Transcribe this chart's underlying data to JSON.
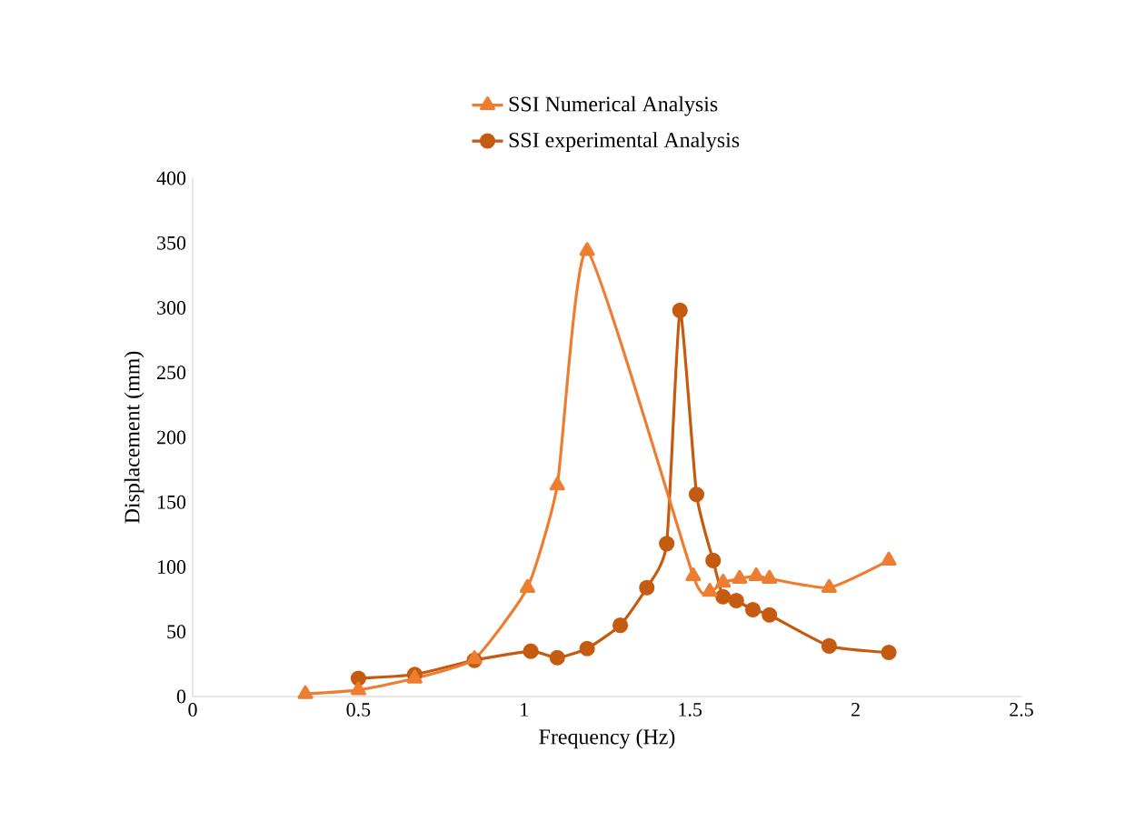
{
  "chart_data": {
    "type": "line",
    "xlabel": "Frequency (Hz)",
    "ylabel": "Displacement (mm)",
    "xlim": [
      0,
      2.5
    ],
    "ylim": [
      0,
      400
    ],
    "xticks": [
      0,
      0.5,
      1,
      1.5,
      2,
      2.5
    ],
    "yticks": [
      0,
      50,
      100,
      150,
      200,
      250,
      300,
      350,
      400
    ],
    "grid": false,
    "legend": "top",
    "series": [
      {
        "name": "SSI Numerical Analysis",
        "color": "#ed7d31",
        "marker": "triangle",
        "x": [
          0.34,
          0.5,
          0.67,
          0.85,
          1.01,
          1.1,
          1.19,
          1.51,
          1.56,
          1.6,
          1.65,
          1.7,
          1.74,
          1.92,
          2.1
        ],
        "values": [
          2,
          5,
          14,
          29,
          84,
          163,
          344,
          93,
          81,
          88,
          91,
          93,
          91,
          84,
          105
        ]
      },
      {
        "name": "SSI experimental Analysis",
        "color": "#c55a11",
        "marker": "circle",
        "x": [
          0.5,
          0.67,
          0.85,
          1.02,
          1.1,
          1.19,
          1.29,
          1.37,
          1.43,
          1.47,
          1.52,
          1.57,
          1.6,
          1.64,
          1.69,
          1.74,
          1.92,
          2.1
        ],
        "values": [
          14,
          17,
          28,
          35,
          30,
          37,
          55,
          84,
          118,
          298,
          156,
          105,
          77,
          74,
          67,
          63,
          39,
          34
        ]
      }
    ]
  }
}
